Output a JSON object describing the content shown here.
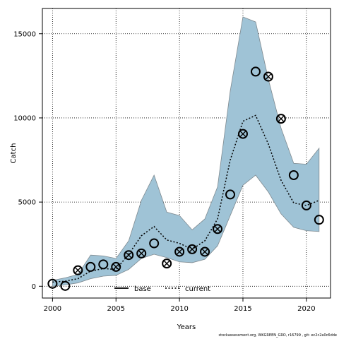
{
  "chart_data": {
    "type": "line",
    "xlabel": "Years",
    "ylabel": "Catch",
    "xlim": [
      1999.2,
      2021.9
    ],
    "ylim": [
      -700,
      16500
    ],
    "x_ticks": [
      2000,
      2005,
      2010,
      2015,
      2020
    ],
    "y_ticks": [
      0,
      5000,
      10000,
      15000
    ],
    "grid": true,
    "legend": {
      "placement": "bottom-center",
      "entries": [
        "base",
        "current"
      ]
    },
    "band": {
      "color": "#9fc3d6",
      "x": [
        2000,
        2001,
        2002,
        2003,
        2004,
        2005,
        2006,
        2007,
        2008,
        2009,
        2010,
        2011,
        2012,
        2013,
        2014,
        2015,
        2016,
        2017,
        2018,
        2019,
        2020,
        2021
      ],
      "upper": [
        350,
        500,
        700,
        1850,
        1800,
        1650,
        2700,
        5100,
        6600,
        4400,
        4200,
        3350,
        4000,
        5900,
        11600,
        16000,
        15700,
        12300,
        9400,
        7300,
        7250,
        8200
      ],
      "lower": [
        0,
        80,
        200,
        450,
        600,
        650,
        1000,
        1650,
        1900,
        1700,
        1450,
        1400,
        1600,
        2400,
        4200,
        6000,
        6600,
        5600,
        4300,
        3500,
        3300,
        3250
      ]
    },
    "series": [
      {
        "name": "base",
        "x": [
          2000,
          2001,
          2002,
          2003,
          2004,
          2005,
          2006,
          2007,
          2008,
          2009,
          2010,
          2011,
          2012,
          2013,
          2014,
          2015,
          2016,
          2017,
          2018,
          2019,
          2020,
          2021
        ],
        "values": [
          150,
          20,
          950,
          1150,
          1300,
          1150,
          1850,
          1950,
          2550,
          1350,
          2050,
          2200,
          2050,
          3400,
          5450,
          9050,
          12750,
          12450,
          9950,
          6600,
          4800,
          3950
        ],
        "crossed": [
          false,
          false,
          true,
          false,
          false,
          true,
          true,
          true,
          false,
          true,
          true,
          true,
          true,
          true,
          false,
          true,
          false,
          true,
          true,
          false,
          false,
          false
        ]
      },
      {
        "name": "current",
        "x": [
          2000,
          2001,
          2002,
          2003,
          2004,
          2005,
          2006,
          2007,
          2008,
          2009,
          2010,
          2011,
          2012,
          2013,
          2014,
          2015,
          2016,
          2017,
          2018,
          2019,
          2020,
          2021
        ],
        "values": [
          250,
          300,
          450,
          900,
          1050,
          1000,
          1900,
          3000,
          3550,
          2750,
          2550,
          2200,
          2700,
          4000,
          7500,
          9800,
          10150,
          8450,
          6300,
          4950,
          4800,
          5100
        ]
      }
    ]
  },
  "footer": "stockassessment.org, WKGREEN_GRO, r16799 , git: ec2c2a0c6dde"
}
